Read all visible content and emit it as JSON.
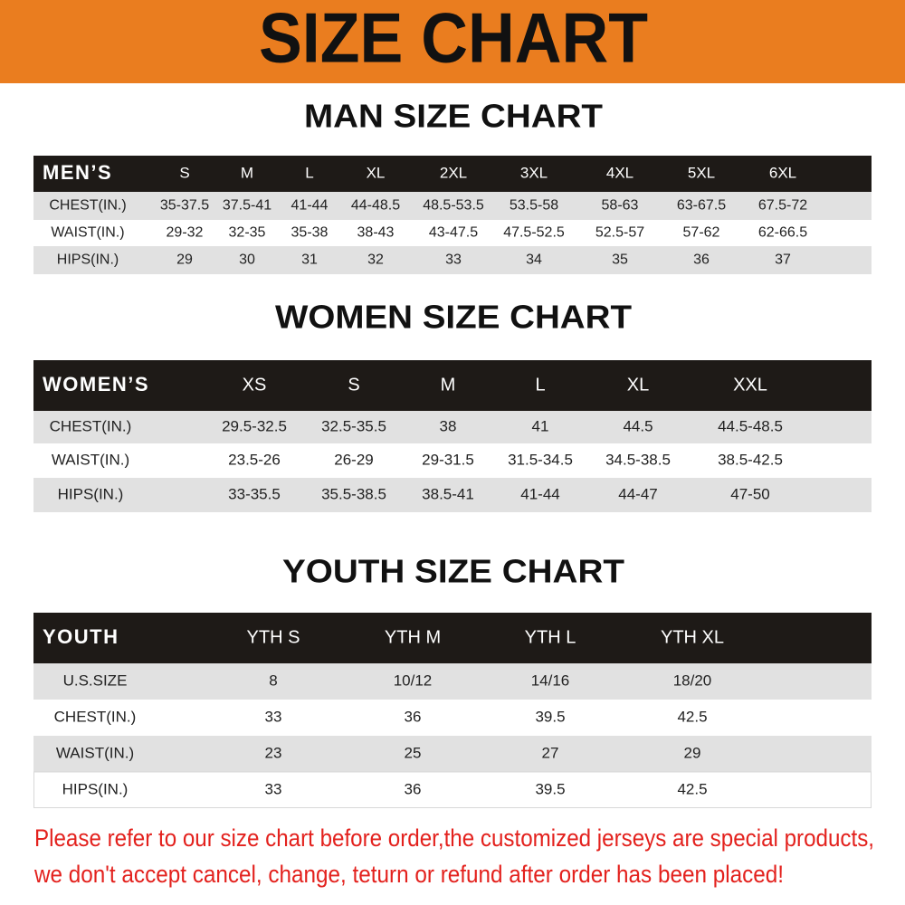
{
  "header": {
    "title": "SIZE CHART"
  },
  "sections": [
    {
      "title": "MAN SIZE CHART",
      "table": {
        "header": [
          "MEN’S",
          "S",
          "M",
          "L",
          "XL",
          "2XL",
          "3XL",
          "4XL",
          "5XL",
          "6XL"
        ],
        "rows": [
          [
            "CHEST(IN.)",
            "35-37.5",
            "37.5-41",
            "41-44",
            "44-48.5",
            "48.5-53.5",
            "53.5-58",
            "58-63",
            "63-67.5",
            "67.5-72"
          ],
          [
            "WAIST(IN.)",
            "29-32",
            "32-35",
            "35-38",
            "38-43",
            "43-47.5",
            "47.5-52.5",
            "52.5-57",
            "57-62",
            "62-66.5"
          ],
          [
            "HIPS(IN.)",
            "29",
            "30",
            "31",
            "32",
            "33",
            "34",
            "35",
            "36",
            "37"
          ]
        ]
      }
    },
    {
      "title": "WOMEN SIZE CHART",
      "table": {
        "header": [
          "WOMEN’S",
          "XS",
          "S",
          "M",
          "L",
          "XL",
          "XXL"
        ],
        "rows": [
          [
            "CHEST(IN.)",
            "29.5-32.5",
            "32.5-35.5",
            "38",
            "41",
            "44.5",
            "44.5-48.5"
          ],
          [
            "WAIST(IN.)",
            "23.5-26",
            "26-29",
            "29-31.5",
            "31.5-34.5",
            "34.5-38.5",
            "38.5-42.5"
          ],
          [
            "HIPS(IN.)",
            "33-35.5",
            "35.5-38.5",
            "38.5-41",
            "41-44",
            "44-47",
            "47-50"
          ]
        ]
      }
    },
    {
      "title": "YOUTH SIZE CHART",
      "table": {
        "header": [
          "YOUTH",
          "YTH S",
          "YTH M",
          "YTH L",
          "YTH XL"
        ],
        "rows": [
          [
            "U.S.SIZE",
            "8",
            "10/12",
            "14/16",
            "18/20"
          ],
          [
            "CHEST(IN.)",
            "33",
            "36",
            "39.5",
            "42.5"
          ],
          [
            "WAIST(IN.)",
            "23",
            "25",
            "27",
            "29"
          ],
          [
            "HIPS(IN.)",
            "33",
            "36",
            "39.5",
            "42.5"
          ]
        ]
      }
    }
  ],
  "note": [
    "Please refer to our size chart before order,the customized jerseys are special products,",
    "we don't accept cancel, change, teturn or refund after order has been placed!"
  ]
}
